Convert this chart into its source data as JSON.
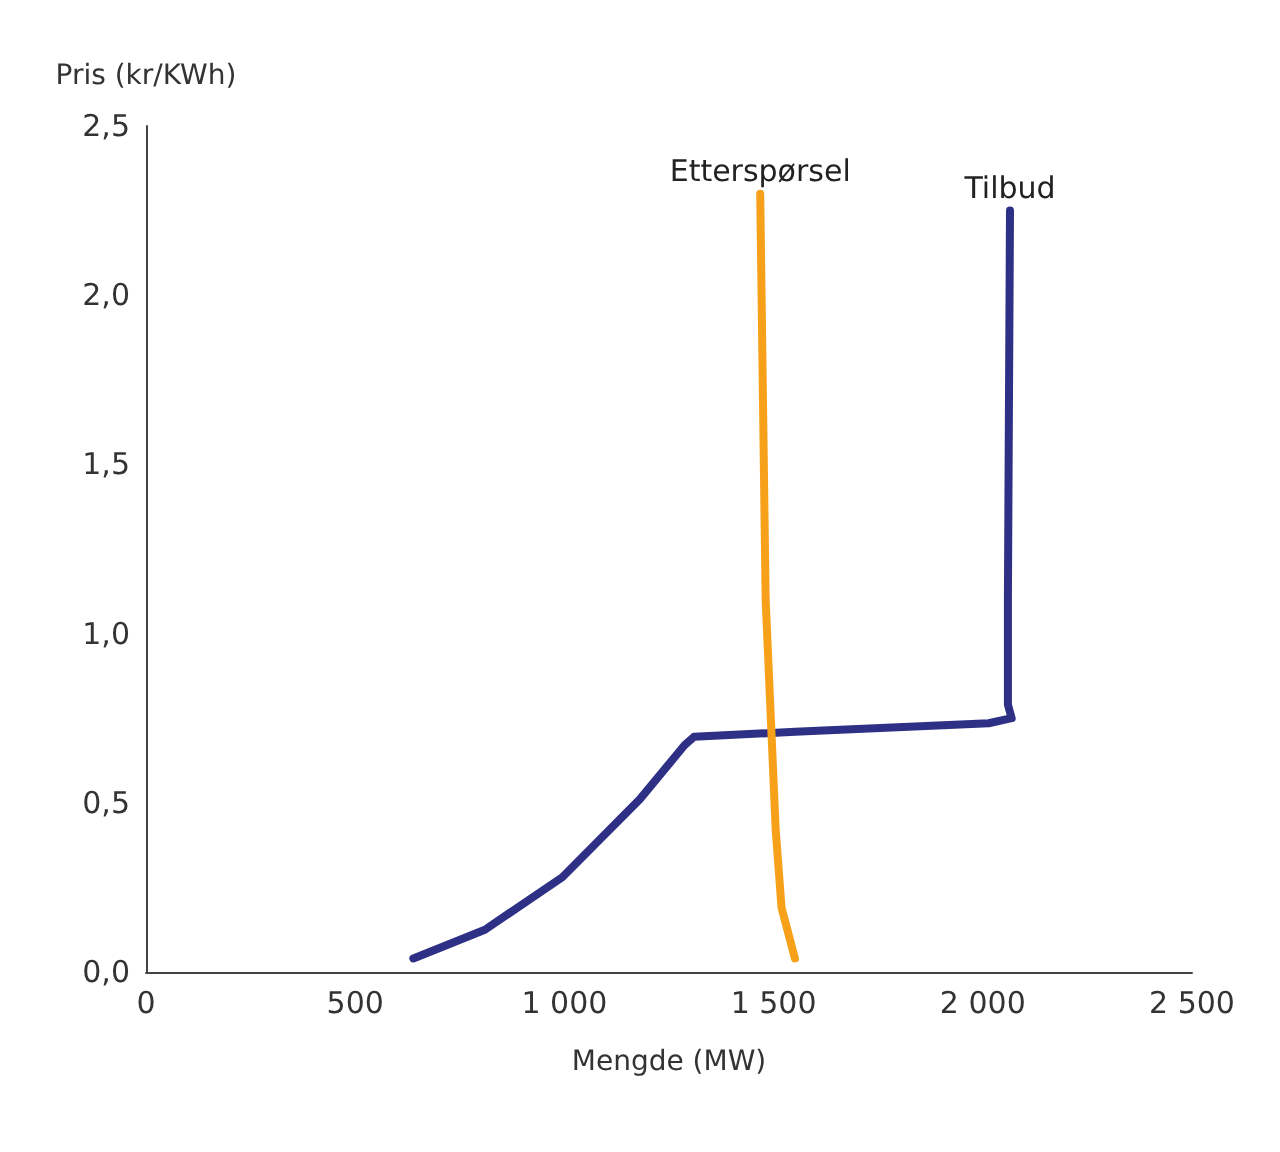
{
  "chart_data": {
    "type": "line",
    "xlabel": "Mengde (MW)",
    "ylabel": "Pris (kr/KWh)",
    "xlim": [
      0,
      2500
    ],
    "xticks": [
      0,
      500,
      {
        "value": 1000,
        "label": "1 000"
      },
      {
        "value": 1500,
        "label": "1 500"
      },
      {
        "value": 2000,
        "label": "2 000"
      },
      {
        "value": 2500,
        "label": "2 500"
      }
    ],
    "ylim": [
      0,
      2.5
    ],
    "yticks": [
      {
        "value": 0,
        "label": "0,0"
      },
      {
        "value": 0.5,
        "label": "0,5"
      },
      {
        "value": 1,
        "label": "1,0"
      },
      {
        "value": 1.5,
        "label": "1,5"
      },
      {
        "value": 2,
        "label": "2,0"
      },
      {
        "value": 2.5,
        "label": "2,5"
      }
    ],
    "grid": false,
    "legend": false,
    "marker": "none",
    "line_style": "solid",
    "series": [
      {
        "name": "Tilbud",
        "color": "#2e3085",
        "x": [
          639,
          810,
          995,
          1180,
          1287,
          1310,
          1551,
          2014,
          2069,
          2060,
          2060,
          2065
        ],
        "values": [
          0.04,
          0.125,
          0.28,
          0.51,
          0.67,
          0.695,
          0.71,
          0.735,
          0.75,
          0.79,
          1.1,
          2.25
        ]
      },
      {
        "name": "Etterspørsel",
        "color": "#f7a11a",
        "x": [
          1468,
          1481,
          1505,
          1519,
          1551
        ],
        "values": [
          2.3,
          1.1,
          0.42,
          0.19,
          0.04
        ]
      }
    ]
  }
}
